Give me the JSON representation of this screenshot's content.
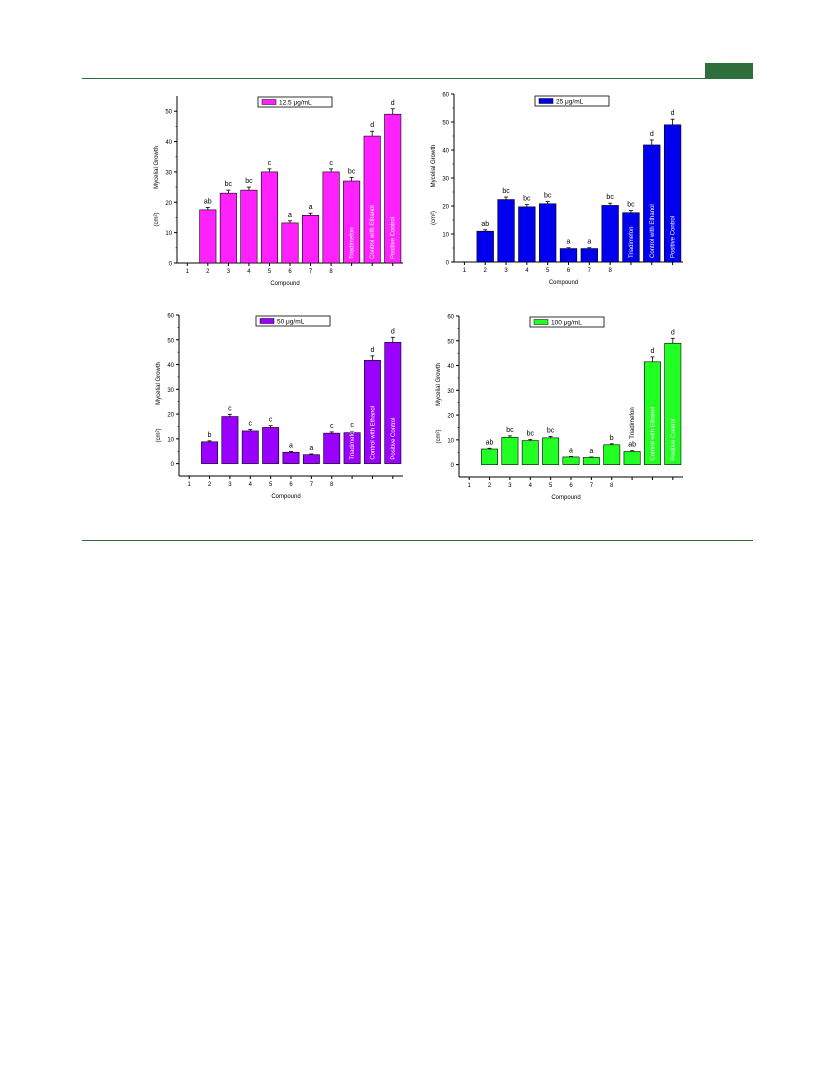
{
  "page": {
    "accent_color": "#2f6f3e"
  },
  "chart_data": [
    {
      "type": "bar",
      "legend": "12.5 μg/mL",
      "legend_placement": "top-right",
      "color": "#ff22ff",
      "ylabel": "Mycelial Growth",
      "yunit": "(cm²)",
      "xlabel": "Compound",
      "ylim": [
        0,
        55
      ],
      "yticks": [
        0,
        10,
        20,
        30,
        40,
        50
      ],
      "xticks": [
        "1",
        "2",
        "3",
        "4",
        "5",
        "6",
        "7",
        "8"
      ],
      "categories": [
        "2",
        "3",
        "4",
        "5",
        "6",
        "7",
        "8",
        "Triadimefon",
        "Control with Ethanol",
        "Positive Control"
      ],
      "values": [
        17.5,
        23,
        24,
        30,
        13.2,
        15.7,
        30,
        27,
        41.8,
        49
      ],
      "errors": [
        0.8,
        1.0,
        1.0,
        1.0,
        0.7,
        0.7,
        1.0,
        1.2,
        1.6,
        1.8
      ],
      "letters": [
        "ab",
        "bc",
        "bc",
        "c",
        "a",
        "a",
        "c",
        "bc",
        "d",
        "d"
      ],
      "inbar_labels": [
        "",
        "",
        "",
        "",
        "",
        "",
        "",
        "Triadimefon",
        "Control with Ethanol",
        "Positive Control"
      ]
    },
    {
      "type": "bar",
      "legend": "25 μg/mL",
      "legend_placement": "top-right",
      "color": "#0000ee",
      "ylabel": "Mycelial Growth",
      "yunit": "(cm²)",
      "xlabel": "Compound",
      "ylim": [
        0,
        60
      ],
      "yticks": [
        0,
        10,
        20,
        30,
        40,
        50,
        60
      ],
      "xticks": [
        "1",
        "2",
        "3",
        "4",
        "5",
        "6",
        "7",
        "8"
      ],
      "categories": [
        "2",
        "3",
        "4",
        "5",
        "6",
        "7",
        "8",
        "Triadimefon",
        "Control with Ethanol",
        "Positive Control"
      ],
      "values": [
        11,
        22.3,
        19.7,
        20.8,
        4.8,
        4.8,
        20.2,
        17.6,
        41.8,
        49
      ],
      "errors": [
        0.5,
        0.9,
        0.8,
        0.8,
        0.3,
        0.3,
        0.8,
        0.8,
        1.8,
        2.0
      ],
      "letters": [
        "ab",
        "bc",
        "bc",
        "bc",
        "a",
        "a",
        "bc",
        "bc",
        "d",
        "d"
      ],
      "inbar_labels": [
        "",
        "",
        "",
        "",
        "",
        "",
        "",
        "Triadimefon",
        "Control with Ethanol",
        "Positive  Control"
      ]
    },
    {
      "type": "bar",
      "legend": "50 μg/mL",
      "legend_placement": "top-right",
      "color": "#9900ff",
      "ylabel": "Mycelial Growth",
      "yunit": "(cm²)",
      "xlabel": "Compound",
      "ylim": [
        -5,
        60
      ],
      "yticks": [
        0,
        10,
        20,
        30,
        40,
        50,
        60
      ],
      "xticks": [
        "1",
        "2",
        "3",
        "4",
        "5",
        "6",
        "7",
        "8"
      ],
      "categories": [
        "2",
        "3",
        "4",
        "5",
        "6",
        "7",
        "8",
        "Triadimefon",
        "Control with Ethanol",
        "Positive Control"
      ],
      "values": [
        8.8,
        19,
        13.2,
        14.6,
        4.6,
        3.6,
        12.3,
        12.5,
        41.7,
        49
      ],
      "errors": [
        0.4,
        0.9,
        0.6,
        0.7,
        0.3,
        0.3,
        0.5,
        0.6,
        1.8,
        2.0
      ],
      "letters": [
        "b",
        "c",
        "c",
        "c",
        "a",
        "a",
        "c",
        "c",
        "d",
        "d"
      ],
      "inbar_labels": [
        "",
        "",
        "",
        "",
        "",
        "",
        "",
        "Triadimefon",
        "Control with Ethanol",
        "Positive Control"
      ]
    },
    {
      "type": "bar",
      "legend": "100 μg/mL",
      "legend_placement": "top-right",
      "color": "#22ff22",
      "ylabel": "Mycelial Growth",
      "yunit": "(cm²)",
      "xlabel": "Compound",
      "ylim": [
        -5,
        60
      ],
      "yticks": [
        0,
        10,
        20,
        30,
        40,
        50,
        60
      ],
      "xticks": [
        "1",
        "2",
        "3",
        "4",
        "5",
        "6",
        "7",
        "8"
      ],
      "categories": [
        "2",
        "3",
        "4",
        "5",
        "6",
        "7",
        "8",
        "Triadimefon",
        "Control with Ethanol",
        "Positive Control"
      ],
      "values": [
        6.3,
        11,
        9.7,
        10.8,
        3.1,
        2.9,
        8,
        5.3,
        41.5,
        49
      ],
      "errors": [
        0.3,
        0.6,
        0.5,
        0.6,
        0.2,
        0.2,
        0.4,
        0.3,
        2.0,
        2.0
      ],
      "letters": [
        "ab",
        "bc",
        "bc",
        "bc",
        "a",
        "a",
        "b",
        "ab",
        "d",
        "d"
      ],
      "inbar_labels": [
        "",
        "",
        "",
        "",
        "",
        "",
        "",
        "",
        "Control with Ethanol",
        "Positive Control"
      ],
      "above_label": "Triadimefon"
    }
  ]
}
